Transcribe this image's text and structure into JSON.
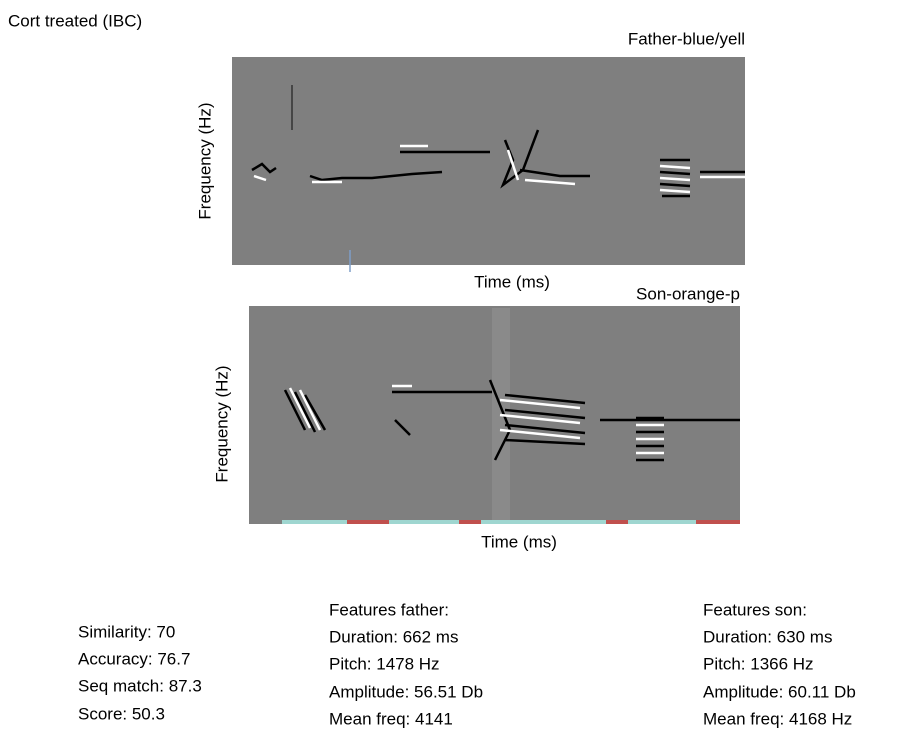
{
  "title": "Cort treated (IBC)",
  "panels": [
    {
      "label": "Father-blue/yell",
      "y_axis": "Frequency (Hz)",
      "x_axis": "Time (ms)"
    },
    {
      "label": "Son-orange-p",
      "y_axis": "Frequency (Hz)",
      "x_axis": "Time (ms)"
    }
  ],
  "scores": [
    "Similarity: 70",
    "Accuracy: 76.7",
    "Seq match: 87.3",
    "Score: 50.3"
  ],
  "father": {
    "heading": "Features father:",
    "lines": [
      "Duration: 662 ms",
      "Pitch: 1478 Hz",
      "Amplitude: 56.51 Db",
      "Mean freq: 4141"
    ]
  },
  "son": {
    "heading": "Features son:",
    "lines": [
      "Duration: 630 ms",
      "Pitch: 1366 Hz",
      "Amplitude: 60.11 Db",
      "Mean freq: 4168 Hz"
    ]
  }
}
